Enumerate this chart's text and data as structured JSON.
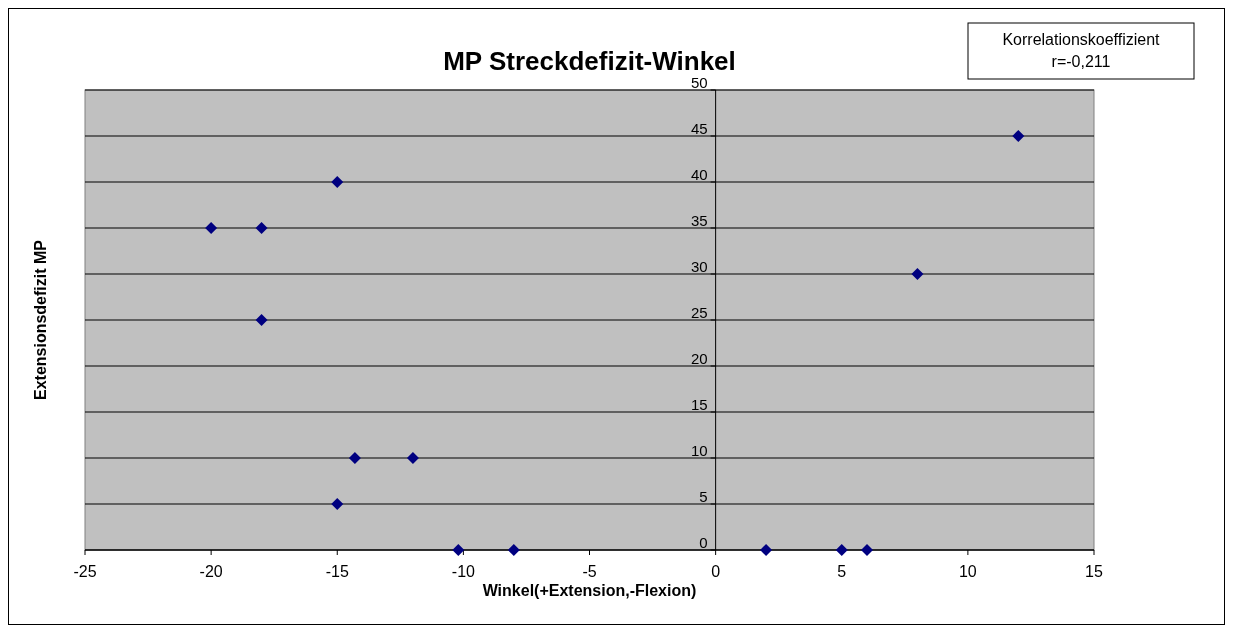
{
  "chart_data": {
    "type": "scatter",
    "title": "MP Streckdefizit-Winkel",
    "xlabel": "Winkel(+Extension,-Flexion)",
    "ylabel": "Extensionsdefizit MP",
    "annotations": [
      "Korrelationskoeffizient\nr=-0,211"
    ],
    "series": [
      {
        "color": "#000080",
        "x": [
          12,
          -15,
          -20,
          -18,
          -18,
          8,
          -14.3,
          -12,
          -15,
          -10.2,
          -8,
          2,
          5,
          6
        ],
        "values": [
          45,
          40,
          35,
          35,
          25,
          30,
          10,
          10,
          5,
          0,
          0,
          0,
          0,
          0
        ]
      }
    ],
    "xlim": [
      -25,
      15
    ],
    "xticks": [
      -25,
      -20,
      -15,
      -10,
      -5,
      0,
      5,
      10,
      15
    ],
    "ylim": [
      0,
      50
    ],
    "yticks": [
      0,
      5,
      10,
      15,
      20,
      25,
      30,
      35,
      40,
      45,
      50
    ],
    "grid": "y",
    "marker": "diamond"
  }
}
